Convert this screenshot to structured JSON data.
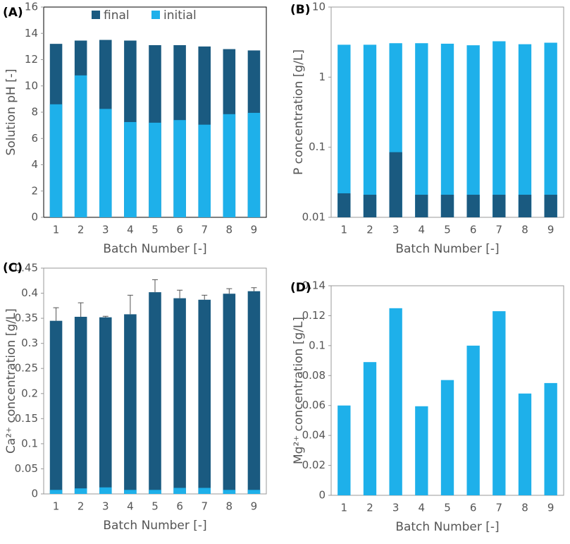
{
  "chart_data": [
    {
      "type": "bar",
      "label": "(A)",
      "x_label": "Batch Number [-]",
      "y_label": "Solution pH [-]",
      "categories": [
        "1",
        "2",
        "3",
        "4",
        "5",
        "6",
        "7",
        "8",
        "9"
      ],
      "series": [
        {
          "name": "final",
          "color": "#1a5a80",
          "values": [
            13.2,
            13.45,
            13.5,
            13.45,
            13.1,
            13.1,
            13.0,
            12.8,
            12.7
          ]
        },
        {
          "name": "initial",
          "color": "#1eb0ea",
          "values": [
            8.6,
            10.8,
            8.25,
            7.25,
            7.2,
            7.4,
            7.05,
            7.85,
            7.95
          ]
        }
      ],
      "ylim": [
        0,
        16
      ],
      "yticks": [
        0,
        2,
        4,
        6,
        8,
        10,
        12,
        14,
        16
      ],
      "legend": "top"
    },
    {
      "type": "bar",
      "label": "(B)",
      "x_label": "Batch Number [-]",
      "y_label": "P concentration [g/L]",
      "categories": [
        "1",
        "2",
        "3",
        "4",
        "5",
        "6",
        "7",
        "8",
        "9"
      ],
      "series": [
        {
          "color": "#1eb0ea",
          "values": [
            2.9,
            2.9,
            3.05,
            3.05,
            3.0,
            2.85,
            3.25,
            2.95,
            3.1
          ]
        },
        {
          "color": "#1a5a80",
          "values": [
            0.022,
            0.021,
            0.085,
            0.021,
            0.021,
            0.021,
            0.021,
            0.021,
            0.021
          ]
        }
      ],
      "ylim": [
        0.01,
        10
      ],
      "yticks": [
        0.01,
        0.1,
        1,
        10
      ],
      "log": true
    },
    {
      "type": "bar",
      "label": "(C)",
      "x_label": "Batch Number [-]",
      "y_label": "Ca²⁺ concentration [g/L]",
      "categories": [
        "1",
        "2",
        "3",
        "4",
        "5",
        "6",
        "7",
        "8",
        "9"
      ],
      "series": [
        {
          "color": "#1a5a80",
          "values": [
            0.345,
            0.353,
            0.352,
            0.358,
            0.402,
            0.39,
            0.387,
            0.399,
            0.404
          ],
          "errors": [
            0.026,
            0.028,
            0.002,
            0.038,
            0.025,
            0.016,
            0.009,
            0.01,
            0.007
          ]
        },
        {
          "color": "#1eb0ea",
          "values": [
            0.008,
            0.011,
            0.013,
            0.008,
            0.008,
            0.012,
            0.012,
            0.008,
            0.008
          ]
        }
      ],
      "ylim": [
        0,
        0.45
      ],
      "yticks": [
        0,
        0.05,
        0.1,
        0.15,
        0.2,
        0.25,
        0.3,
        0.35,
        0.4,
        0.45
      ]
    },
    {
      "type": "bar",
      "label": "(D)",
      "x_label": "Batch Number [-]",
      "y_label": "Mg²⁺ concentration [g/L]",
      "categories": [
        "1",
        "2",
        "3",
        "4",
        "5",
        "6",
        "7",
        "8",
        "9"
      ],
      "series": [
        {
          "color": "#1eb0ea",
          "values": [
            0.06,
            0.089,
            0.125,
            0.0595,
            0.077,
            0.1,
            0.123,
            0.068,
            0.075
          ]
        }
      ],
      "ylim": [
        0,
        0.14
      ],
      "yticks": [
        0,
        0.02,
        0.04,
        0.06,
        0.08,
        0.1,
        0.12,
        0.14
      ]
    }
  ]
}
